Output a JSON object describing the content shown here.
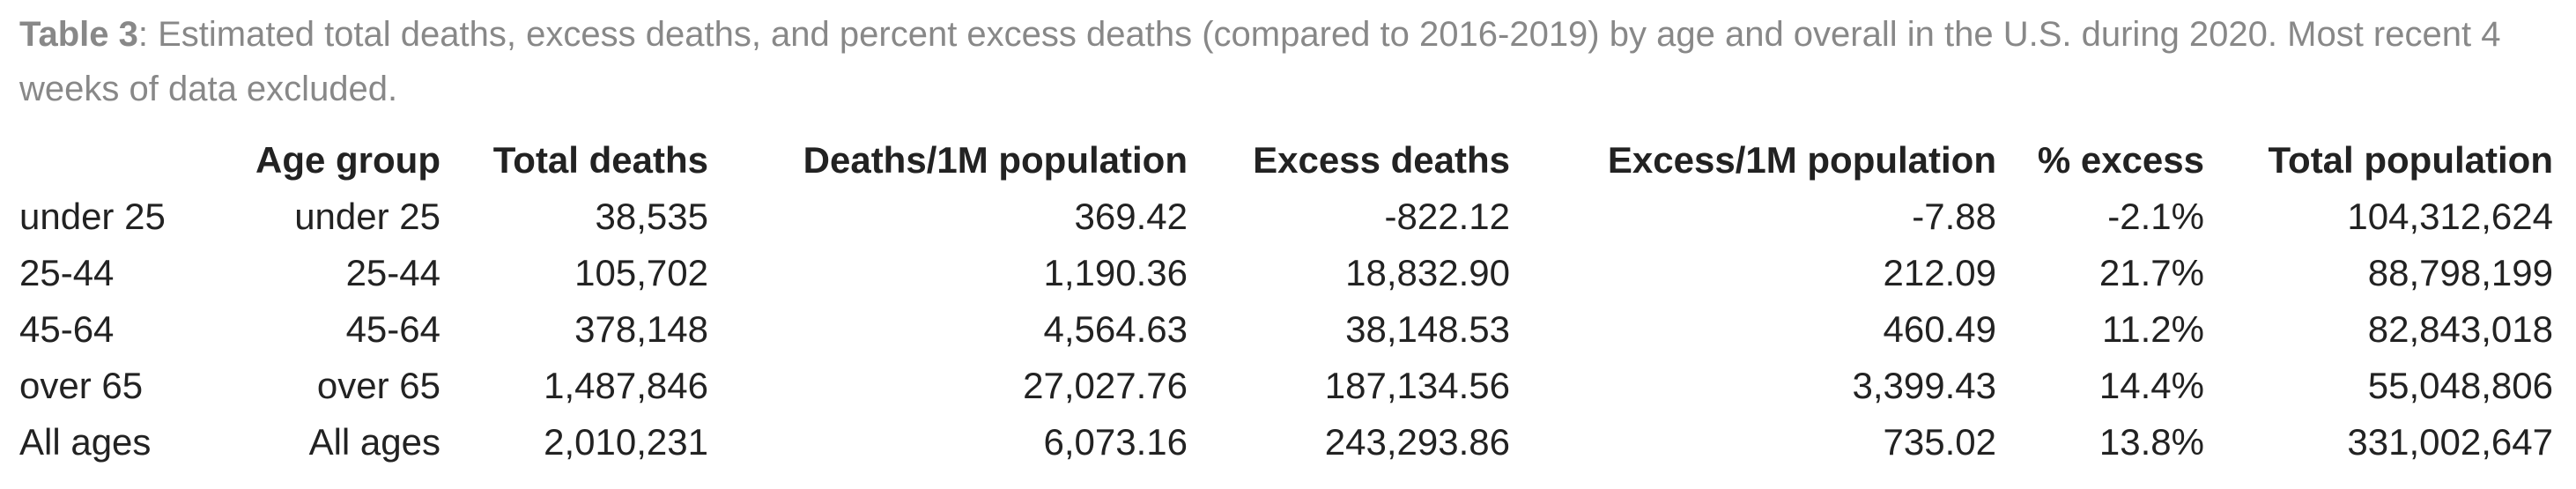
{
  "caption": {
    "label": "Table 3",
    "text": ": Estimated total deaths, excess deaths, and percent excess deaths (compared to 2016-2019) by age and overall in the U.S. during 2020. Most recent 4 weeks of data excluded."
  },
  "table": {
    "columns": [
      "",
      "Age group",
      "Total deaths",
      "Deaths/1M population",
      "Excess deaths",
      "Excess/1M population",
      "% excess",
      "Total population"
    ],
    "rows": [
      [
        "under 25",
        "under 25",
        "38,535",
        "369.42",
        "-822.12",
        "-7.88",
        "-2.1%",
        "104,312,624"
      ],
      [
        "25-44",
        "25-44",
        "105,702",
        "1,190.36",
        "18,832.90",
        "212.09",
        "21.7%",
        "88,798,199"
      ],
      [
        "45-64",
        "45-64",
        "378,148",
        "4,564.63",
        "38,148.53",
        "460.49",
        "11.2%",
        "82,843,018"
      ],
      [
        "over 65",
        "over 65",
        "1,487,846",
        "27,027.76",
        "187,134.56",
        "3,399.43",
        "14.4%",
        "55,048,806"
      ],
      [
        "All ages",
        "All ages",
        "2,010,231",
        "6,073.16",
        "243,293.86",
        "735.02",
        "13.8%",
        "331,002,647"
      ]
    ]
  }
}
